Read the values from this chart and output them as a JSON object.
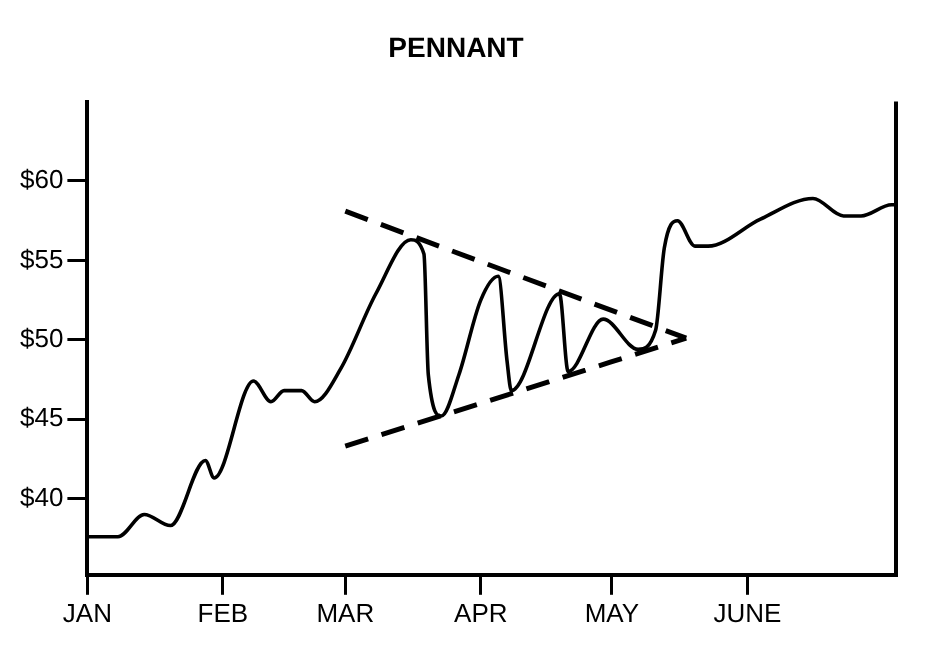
{
  "chart_data": {
    "type": "line",
    "title": "PENNANT",
    "xlim": [
      "--01-01",
      "--07-05"
    ],
    "ylim": [
      35.2,
      65
    ],
    "xticks": [
      {
        "value": "--01-01",
        "label": "JAN"
      },
      {
        "value": "--02-01",
        "label": "FEB"
      },
      {
        "value": "--03-01",
        "label": "MAR"
      },
      {
        "value": "--04-01",
        "label": "APR"
      },
      {
        "value": "--05-01",
        "label": "MAY"
      },
      {
        "value": "--06-01",
        "label": "JUNE"
      }
    ],
    "yticks": [
      {
        "value": 40,
        "label": "$40"
      },
      {
        "value": 45,
        "label": "$45"
      },
      {
        "value": 50,
        "label": "$50"
      },
      {
        "value": 55,
        "label": "$55"
      },
      {
        "value": 60,
        "label": "$60"
      }
    ],
    "grid": false,
    "legend": false,
    "marker": "none",
    "series": [
      {
        "color": "#000000",
        "line_style": "solid",
        "x": [
          "--01-01",
          "--01-08",
          "--01-14",
          "--01-20",
          "--01-28",
          "--01-30",
          "--02-08",
          "--02-12",
          "--02-15",
          "--02-19",
          "--02-22",
          "--02-28",
          "--03-08",
          "--03-16",
          "--03-19",
          "--03-20",
          "--03-23",
          "--03-27",
          "--04-01",
          "--04-05",
          "--04-07",
          "--04-08",
          "--04-19",
          "--04-21",
          "--04-29",
          "--05-07",
          "--05-11",
          "--05-13",
          "--05-16",
          "--05-20",
          "--05-23",
          "--06-04",
          "--06-16",
          "--06-23",
          "--06-27",
          "--07-04",
          "--07-05"
        ],
        "values": [
          37.6,
          37.6,
          39.0,
          38.3,
          42.4,
          41.3,
          47.4,
          46.1,
          46.8,
          46.8,
          46.1,
          48.2,
          52.9,
          56.3,
          55.4,
          47.8,
          45.2,
          47.8,
          52.5,
          54.0,
          48.7,
          46.8,
          52.9,
          48.0,
          51.3,
          49.4,
          50.6,
          55.8,
          57.5,
          55.9,
          55.9,
          57.6,
          58.9,
          57.8,
          57.8,
          58.5,
          58.5
        ]
      },
      {
        "type": "line",
        "color": "#000000",
        "line_style": "dashed",
        "x": [
          "--03-01",
          "--05-18"
        ],
        "values": [
          58.1,
          50.1
        ]
      },
      {
        "type": "line",
        "color": "#000000",
        "line_style": "dashed",
        "x": [
          "--03-01",
          "--05-18"
        ],
        "values": [
          43.3,
          50.1
        ]
      }
    ]
  }
}
